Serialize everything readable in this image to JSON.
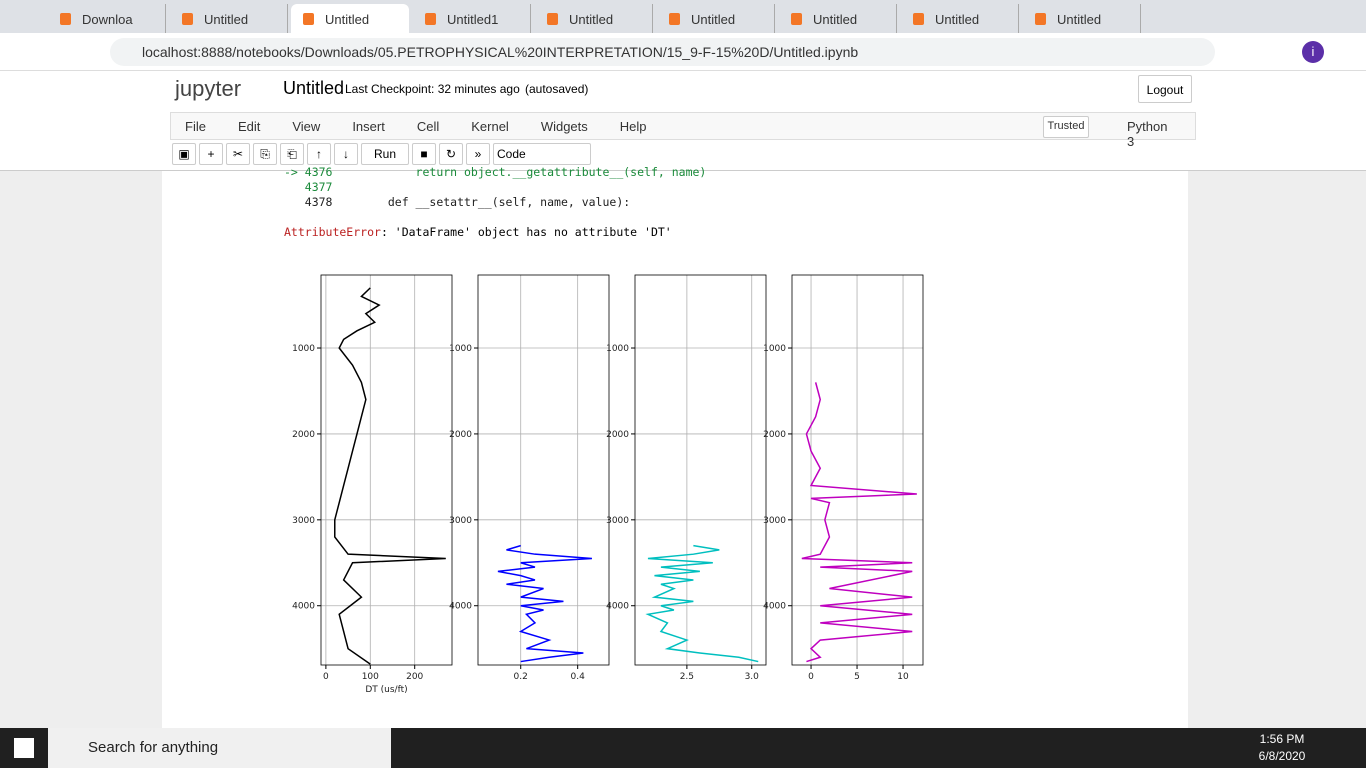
{
  "browser": {
    "tabs": [
      "Downloa",
      "Untitled",
      "Untitled",
      "Untitled1",
      "Untitled",
      "Untitled",
      "Untitled",
      "Untitled",
      "Untitled"
    ],
    "url": "localhost:8888/notebooks/Downloads/05.PETROPHYSICAL%20INTERPRETATION/15_9-F-15%20D/Untitled.ipynb",
    "profile": "i"
  },
  "notebook": {
    "logo": "jupyter",
    "name": "Untitled",
    "checkpoint": "Last Checkpoint: 32 minutes ago",
    "autosave": "(autosaved)",
    "logout": "Logout",
    "menu": [
      "File",
      "Edit",
      "View",
      "Insert",
      "Cell",
      "Kernel",
      "Widgets",
      "Help"
    ],
    "trusted": "Trusted",
    "kernel": "Python 3",
    "run": "Run",
    "cell_type": "Code",
    "traceback": [
      "-> 4376            return object.__getattribute__(self, name)",
      "   4377",
      "   4378        def __setattr__(self, name, value):"
    ],
    "error_name": "AttributeError",
    "error_message": ": 'DataFrame' object has no attribute 'DT'"
  },
  "chart_data": [
    {
      "type": "line",
      "xlabel": "DT (us/ft)",
      "xlim": [
        -11,
        284
      ],
      "xticks": [
        0,
        100,
        200
      ],
      "ylim": [
        4690,
        150
      ],
      "yticks": [
        1000,
        2000,
        3000,
        4000
      ],
      "grid": true,
      "series": [
        {
          "color": "#000000",
          "depth": [
            300,
            400,
            500,
            600,
            700,
            800,
            900,
            1000,
            1200,
            1400,
            1600,
            1800,
            2000,
            2200,
            2400,
            2600,
            2800,
            3000,
            3200,
            3400,
            3450,
            3500,
            3700,
            3900,
            4100,
            4300,
            4500,
            4680
          ],
          "values": [
            100,
            80,
            120,
            90,
            110,
            70,
            40,
            30,
            60,
            80,
            90,
            80,
            70,
            60,
            50,
            40,
            30,
            20,
            20,
            50,
            270,
            60,
            40,
            80,
            30,
            40,
            50,
            100
          ]
        }
      ]
    },
    {
      "type": "line",
      "xlim": [
        0.05,
        0.51
      ],
      "xticks": [
        0.2,
        0.4
      ],
      "ylim": [
        4690,
        150
      ],
      "yticks": [
        1000,
        2000,
        3000,
        4000
      ],
      "grid": true,
      "series": [
        {
          "color": "#0000ff",
          "depth": [
            3300,
            3350,
            3400,
            3450,
            3500,
            3550,
            3600,
            3650,
            3700,
            3750,
            3800,
            3900,
            3950,
            4000,
            4050,
            4100,
            4200,
            4300,
            4400,
            4500,
            4550,
            4600,
            4650
          ],
          "values": [
            0.2,
            0.15,
            0.25,
            0.45,
            0.2,
            0.25,
            0.12,
            0.2,
            0.25,
            0.15,
            0.28,
            0.2,
            0.35,
            0.2,
            0.28,
            0.22,
            0.25,
            0.2,
            0.3,
            0.22,
            0.42,
            0.3,
            0.2
          ]
        }
      ]
    },
    {
      "type": "line",
      "xlim": [
        2.1,
        3.11
      ],
      "xticks": [
        2.5,
        {
          "value": 3,
          "label": "3.0"
        }
      ],
      "ylim": [
        4690,
        150
      ],
      "yticks": [
        1000,
        2000,
        3000,
        4000
      ],
      "grid": true,
      "series": [
        {
          "color": "#00bfbf",
          "depth": [
            3300,
            3350,
            3400,
            3450,
            3500,
            3550,
            3600,
            3650,
            3700,
            3750,
            3800,
            3900,
            3950,
            4000,
            4050,
            4100,
            4200,
            4300,
            4400,
            4500,
            4550,
            4600,
            4650
          ],
          "values": [
            2.55,
            2.75,
            2.55,
            2.2,
            2.7,
            2.3,
            2.6,
            2.25,
            2.55,
            2.3,
            2.4,
            2.25,
            2.55,
            2.3,
            2.4,
            2.2,
            2.35,
            2.3,
            2.5,
            2.35,
            2.6,
            2.9,
            3.05
          ]
        }
      ]
    },
    {
      "type": "line",
      "xlim": [
        -2.07,
        12.17
      ],
      "xticks": [
        0,
        5,
        10
      ],
      "ylim": [
        4690,
        150
      ],
      "yticks": [
        1000,
        2000,
        3000,
        4000
      ],
      "grid": true,
      "series": [
        {
          "color": "#bf00bf",
          "depth": [
            1400,
            1600,
            1800,
            2000,
            2200,
            2400,
            2600,
            2700,
            2750,
            2800,
            3000,
            3200,
            3400,
            3450,
            3500,
            3550,
            3600,
            3800,
            3900,
            4000,
            4100,
            4200,
            4300,
            4400,
            4500,
            4600,
            4650
          ],
          "values": [
            0.5,
            1,
            0.5,
            -0.5,
            0,
            1,
            0,
            11.5,
            0,
            2,
            1.5,
            2,
            1,
            -1,
            11,
            1,
            11,
            2,
            11,
            1,
            11,
            1,
            11,
            1,
            0,
            1,
            -0.5
          ]
        }
      ]
    }
  ],
  "taskbar": {
    "search": "Search for anything",
    "time": "1:56 PM",
    "date": "6/8/2020"
  }
}
